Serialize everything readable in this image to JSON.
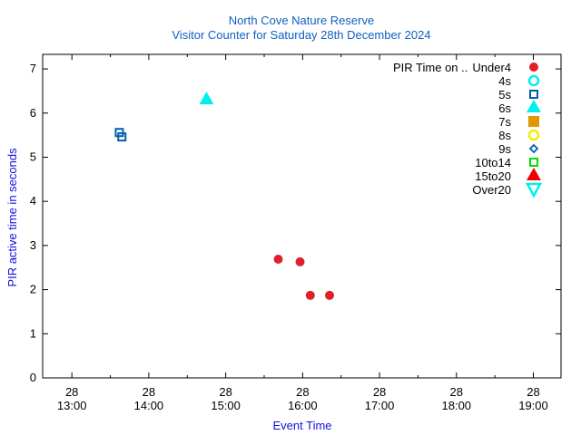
{
  "chart_data": {
    "type": "scatter",
    "title": "North Cove Nature Reserve",
    "subtitle": "Visitor Counter for Saturday 28th December 2024",
    "xlabel": "Event Time",
    "ylabel": "PIR active time in seconds",
    "xlim_hours": [
      12.62,
      19.36
    ],
    "ylim": [
      0,
      7.33
    ],
    "yticks": [
      "0",
      "1",
      "2",
      "3",
      "4",
      "5",
      "6",
      "7"
    ],
    "xticks": [
      {
        "h": 13,
        "day": "28",
        "time": "13:00"
      },
      {
        "h": 14,
        "day": "28",
        "time": "14:00"
      },
      {
        "h": 15,
        "day": "28",
        "time": "15:00"
      },
      {
        "h": 16,
        "day": "28",
        "time": "16:00"
      },
      {
        "h": 17,
        "day": "28",
        "time": "17:00"
      },
      {
        "h": 18,
        "day": "28",
        "time": "18:00"
      },
      {
        "h": 19,
        "day": "28",
        "time": "19:00"
      }
    ],
    "legend_position": "top-right",
    "legend_title": "PIR Time on ..",
    "series": [
      {
        "name": "Under4",
        "marker": "circle-filled",
        "color": "#e0202a",
        "points": [
          [
            "15:41",
            2.69
          ],
          [
            "15:58",
            2.63
          ],
          [
            "16:06",
            1.87
          ],
          [
            "16:21",
            1.87
          ]
        ]
      },
      {
        "name": "4s",
        "marker": "circle-open",
        "color": "#00f0f0",
        "points": []
      },
      {
        "name": "5s",
        "marker": "square-open",
        "color": "#0060b0",
        "points": [
          [
            "13:37",
            5.56
          ],
          [
            "13:39",
            5.46
          ]
        ]
      },
      {
        "name": "6s",
        "marker": "triangle-filled",
        "color": "#00f0f0",
        "points": [
          [
            "14:45",
            6.3
          ]
        ]
      },
      {
        "name": "7s",
        "marker": "square-filled",
        "color": "#e09800",
        "points": []
      },
      {
        "name": "8s",
        "marker": "circle-open",
        "color": "#f0f000",
        "points": []
      },
      {
        "name": "9s",
        "marker": "diamond-open",
        "color": "#0060b0",
        "points": []
      },
      {
        "name": "10to14",
        "marker": "square-open",
        "color": "#00e000",
        "points": []
      },
      {
        "name": "15to20",
        "marker": "triangle-filled",
        "color": "#f00000",
        "points": []
      },
      {
        "name": "Over20",
        "marker": "triangle-down-open",
        "color": "#00f0f0",
        "points": []
      }
    ]
  }
}
